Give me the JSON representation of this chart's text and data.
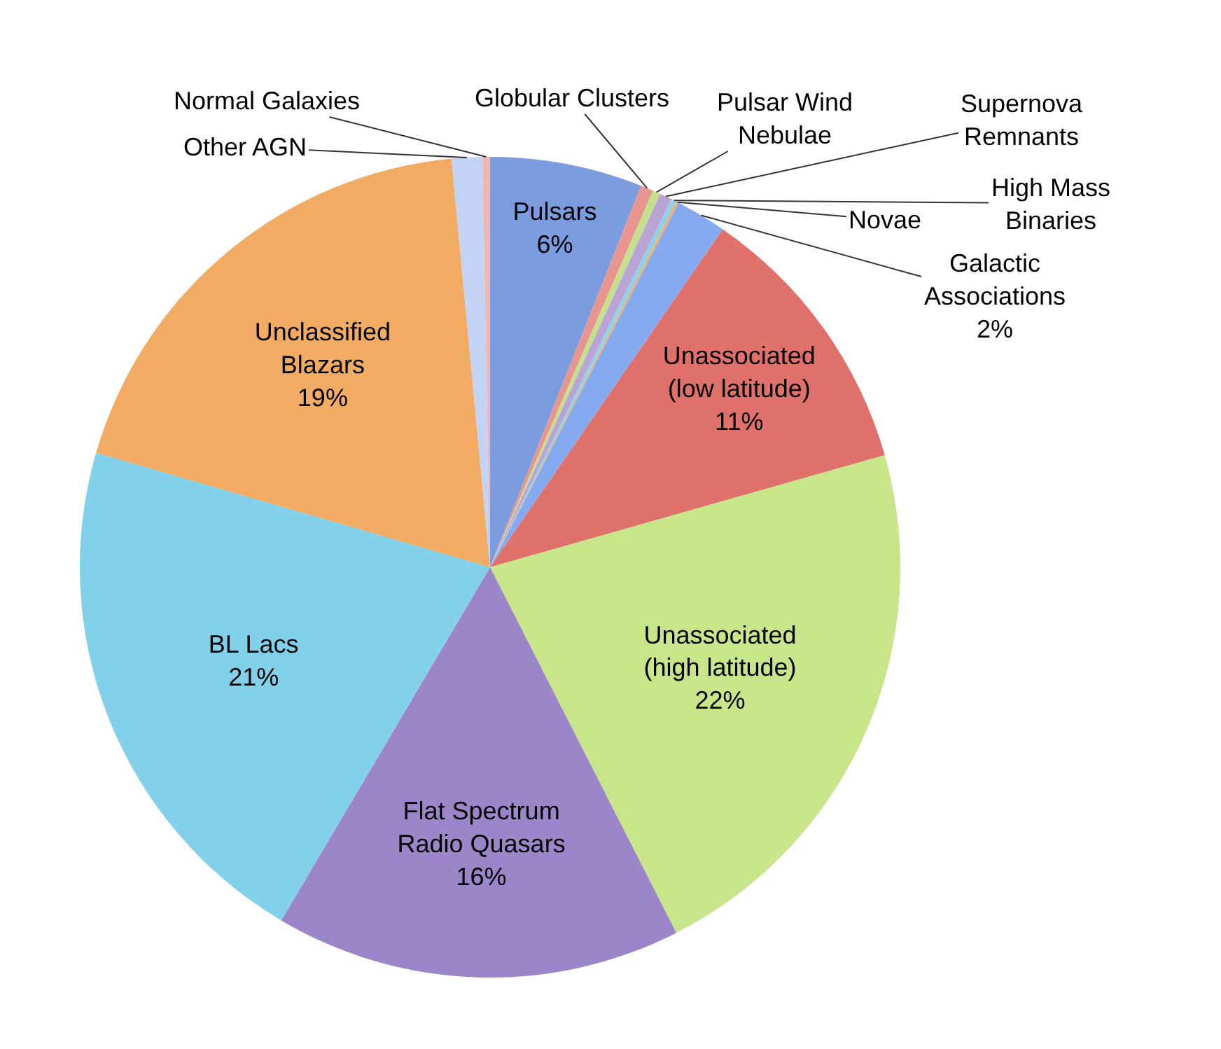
{
  "chart_data": {
    "type": "pie",
    "categories": [
      "Pulsars",
      "Globular Clusters",
      "Pulsar Wind\nNebulae",
      "Supernova\nRemnants",
      "High Mass\nBinaries",
      "Novae",
      "Galactic\nAssociations",
      "Unassociated\n(low latitude)",
      "Unassociated\n(high latitude)",
      "Flat Spectrum\nRadio Quasars",
      "BL Lacs",
      "Unclassified\nBlazars",
      "Other AGN",
      "Normal Galaxies"
    ],
    "values": [
      6,
      0.5,
      0.3,
      0.5,
      0.2,
      0.1,
      2,
      11,
      21.9,
      16,
      21,
      19,
      1.2,
      0.3
    ],
    "value_labels": [
      "6%",
      null,
      null,
      null,
      null,
      null,
      "2%",
      "11%",
      "22%",
      "16%",
      "21%",
      "19%",
      null,
      null
    ],
    "colors": [
      "#7b9ddf",
      "#e8958f",
      "#c5e08a",
      "#b9a4d6",
      "#8fd3ea",
      "#f4ae6a",
      "#86aaf0",
      "#e0706a",
      "#c8e58a",
      "#9c86c9",
      "#82d0ea",
      "#f2ab63",
      "#c2d3f5",
      "#f4b4b0"
    ],
    "legend": false
  }
}
